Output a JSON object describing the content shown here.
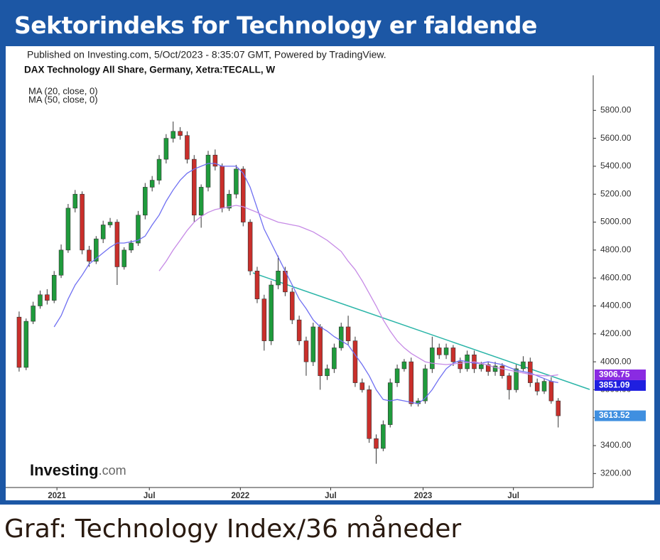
{
  "header": {
    "title": "Sektorindeks for Technology er faldende"
  },
  "caption": "Graf: Technology Index/36 måneder",
  "chart_data": {
    "type": "candlestick",
    "published": "Published on Investing.com, 5/Oct/2023 - 8:35:07 GMT, Powered by TradingView.",
    "subtitle": "DAX Technology All Share, Germany, Xetra:TECALL, W",
    "logo": "Investing",
    "logo_suffix": ".com",
    "up_color": "#1f9b3c",
    "down_color": "#c92f2b",
    "open": [
      4320,
      3960,
      4290,
      4400,
      4480,
      4440,
      4620,
      4800,
      5100,
      5200,
      4800,
      4720,
      4880,
      4980,
      5000,
      4680,
      4800,
      4850,
      5050,
      5250,
      5300,
      5450,
      5600,
      5650,
      5620,
      5450,
      5050,
      5250,
      5480,
      5400,
      5100,
      5200,
      5380,
      5000,
      4650,
      4450,
      4150,
      4550,
      4650,
      4500,
      4300,
      4150,
      4000,
      4250,
      3900,
      3950,
      4100,
      4250,
      4150,
      3850,
      3800,
      3450,
      3380,
      3550,
      3850,
      3950,
      4000,
      3700,
      3720,
      3950,
      4100,
      4050,
      4100,
      4000,
      3950,
      4050,
      3950,
      3980,
      3930,
      3970,
      3900,
      3800,
      3950,
      4000,
      3850,
      3790,
      3860,
      3720
    ],
    "high": [
      4360,
      4310,
      4430,
      4510,
      4520,
      4650,
      4840,
      5130,
      5230,
      5220,
      4830,
      4900,
      5010,
      5030,
      5020,
      4820,
      4870,
      5080,
      5280,
      5330,
      5480,
      5630,
      5720,
      5680,
      5650,
      5480,
      5270,
      5510,
      5520,
      5420,
      5230,
      5410,
      5400,
      5020,
      4680,
      4480,
      4580,
      4760,
      4680,
      4530,
      4330,
      4180,
      4280,
      4270,
      3980,
      4130,
      4280,
      4330,
      4180,
      3880,
      3830,
      3480,
      3580,
      3880,
      3980,
      4020,
      4030,
      3740,
      3980,
      4180,
      4130,
      4130,
      4120,
      4030,
      4080,
      4080,
      4000,
      4000,
      4000,
      3990,
      3920,
      3980,
      4040,
      4030,
      3880,
      3880,
      3890,
      3740
    ],
    "low": [
      3930,
      3940,
      4270,
      4380,
      4410,
      4420,
      4600,
      4780,
      5070,
      4770,
      4680,
      4700,
      4850,
      4960,
      4550,
      4660,
      4780,
      4830,
      5020,
      5220,
      5270,
      5420,
      5570,
      5590,
      5420,
      5000,
      4960,
      5220,
      5370,
      5070,
      5080,
      5170,
      4970,
      4620,
      4420,
      4080,
      4120,
      4520,
      4470,
      4270,
      4120,
      3900,
      3970,
      3800,
      3870,
      3920,
      4080,
      4120,
      3820,
      3780,
      3420,
      3270,
      3360,
      3530,
      3820,
      3930,
      3680,
      3680,
      3700,
      3920,
      4020,
      4020,
      3970,
      3920,
      3930,
      3920,
      3930,
      3900,
      3900,
      3880,
      3730,
      3780,
      3930,
      3820,
      3760,
      3770,
      3700,
      3530
    ],
    "close": [
      3960,
      4290,
      4400,
      4480,
      4440,
      4620,
      4800,
      5100,
      5200,
      4800,
      4720,
      4880,
      4980,
      5000,
      4680,
      4800,
      4850,
      5050,
      5250,
      5300,
      5450,
      5600,
      5650,
      5620,
      5450,
      5050,
      5250,
      5480,
      5400,
      5100,
      5200,
      5380,
      5000,
      4650,
      4450,
      4150,
      4550,
      4650,
      4500,
      4300,
      4150,
      4000,
      4250,
      3900,
      3950,
      4100,
      4250,
      4150,
      3850,
      3800,
      3450,
      3380,
      3550,
      3850,
      3950,
      4000,
      3700,
      3720,
      3950,
      4100,
      4050,
      4100,
      4000,
      3950,
      4050,
      3950,
      3980,
      3930,
      3970,
      3900,
      3800,
      3950,
      4000,
      3850,
      3790,
      3860,
      3720,
      3613.52
    ],
    "series": [
      {
        "name": "MA (20, close, 0)",
        "color": "#6f6ff2",
        "values": [
          null,
          null,
          null,
          null,
          null,
          4250,
          4330,
          4450,
          4550,
          4620,
          4700,
          4740,
          4780,
          4820,
          4850,
          4850,
          4860,
          4870,
          4900,
          4980,
          5050,
          5150,
          5230,
          5300,
          5350,
          5380,
          5400,
          5420,
          5420,
          5400,
          5400,
          5400,
          5350,
          5250,
          5100,
          4950,
          4850,
          4750,
          4650,
          4550,
          4450,
          4380,
          4300,
          4250,
          4220,
          4180,
          4150,
          4120,
          4050,
          3980,
          3900,
          3800,
          3730,
          3720,
          3730,
          3720,
          3710,
          3700,
          3740,
          3800,
          3880,
          3950,
          3990,
          4010,
          4000,
          3990,
          3990,
          4000,
          3990,
          3980,
          3960,
          3940,
          3930,
          3920,
          3900,
          3880,
          3860,
          3851.09
        ]
      },
      {
        "name": "MA (50, close, 0)",
        "color": "#c68ae6",
        "values": [
          null,
          null,
          null,
          null,
          null,
          null,
          null,
          null,
          null,
          null,
          null,
          null,
          null,
          null,
          null,
          null,
          null,
          null,
          null,
          null,
          4650,
          4720,
          4800,
          4870,
          4940,
          5000,
          5040,
          5070,
          5090,
          5100,
          5110,
          5120,
          5110,
          5090,
          5070,
          5040,
          5020,
          5000,
          4990,
          4980,
          4970,
          4950,
          4930,
          4900,
          4870,
          4830,
          4790,
          4720,
          4660,
          4580,
          4490,
          4400,
          4300,
          4220,
          4150,
          4100,
          4060,
          4030,
          4000,
          3990,
          3985,
          3980,
          3985,
          3990,
          3995,
          4000,
          3990,
          3975,
          3960,
          3950,
          3940,
          3930,
          3920,
          3910,
          3905,
          3900,
          3900,
          3906.75
        ]
      }
    ],
    "price_labels": [
      {
        "value": 3906.75,
        "color": "#8a2be2"
      },
      {
        "value": 3851.09,
        "color": "#1f1fe0"
      },
      {
        "value": 3613.52,
        "color": "#3f8fe0"
      }
    ],
    "xlim": [
      -0.5,
      82
    ],
    "xticks": [
      {
        "value": 5.4,
        "label": "2021"
      },
      {
        "value": 18.6,
        "label": "Jul"
      },
      {
        "value": 31.6,
        "label": "2022"
      },
      {
        "value": 44.5,
        "label": "Jul"
      },
      {
        "value": 57.7,
        "label": "2023"
      },
      {
        "value": 70.6,
        "label": "Jul"
      }
    ],
    "ylim": [
      3100,
      6000
    ],
    "yticks": [
      {
        "value": 3200,
        "label": "3200.00"
      },
      {
        "value": 3400,
        "label": "3400.00"
      },
      {
        "value": 3600,
        "label": "3600.00"
      },
      {
        "value": 3800,
        "label": "3800.00"
      },
      {
        "value": 4000,
        "label": "4000.00"
      },
      {
        "value": 4200,
        "label": "4200.00"
      },
      {
        "value": 4400,
        "label": "4400.00"
      },
      {
        "value": 4600,
        "label": "4600.00"
      },
      {
        "value": 4800,
        "label": "4800.00"
      },
      {
        "value": 5000,
        "label": "5000.00"
      },
      {
        "value": 5200,
        "label": "5200.00"
      },
      {
        "value": 5400,
        "label": "5400.00"
      },
      {
        "value": 5600,
        "label": "5600.00"
      },
      {
        "value": 5800,
        "label": "5800.00"
      }
    ]
  }
}
